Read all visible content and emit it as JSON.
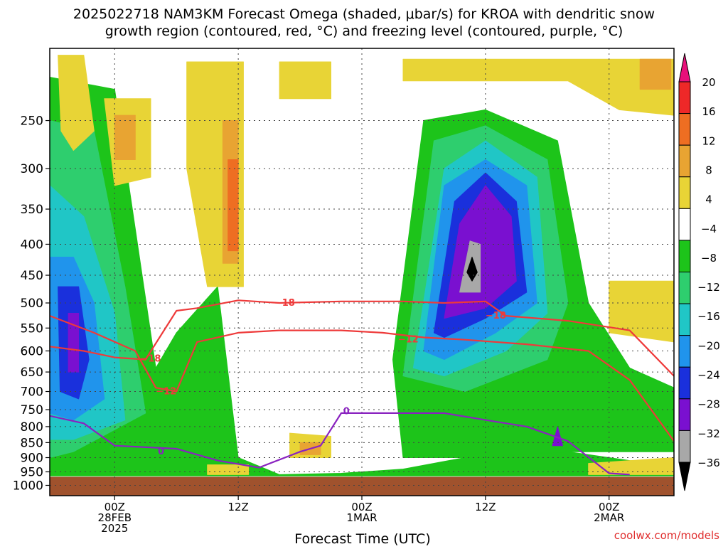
{
  "chart_data": {
    "type": "heatmap",
    "title_line1": "2025022718 NAM3KM Forecast Omega (shaded, μbar/s) for KROA with dendritic snow",
    "title_line2": "growth region (contoured, red, °C) and freezing level (contoured, purple, °C)",
    "xlabel": "Forecast Time (UTC)",
    "credit": "coolwx.com/models",
    "x_ticks": [
      {
        "label": "00Z",
        "label2": "28FEB",
        "label3": "2025",
        "hour": 6
      },
      {
        "label": "12Z",
        "label2": "",
        "label3": "",
        "hour": 18
      },
      {
        "label": "00Z",
        "label2": "1MAR",
        "label3": "",
        "hour": 30
      },
      {
        "label": "12Z",
        "label2": "",
        "label3": "",
        "hour": 42
      },
      {
        "label": "00Z",
        "label2": "2MAR",
        "label3": "",
        "hour": 54
      }
    ],
    "x_range_hours": [
      -0.3,
      60.3
    ],
    "y_ticks": [
      250,
      300,
      350,
      400,
      450,
      500,
      550,
      600,
      650,
      700,
      750,
      800,
      850,
      900,
      950,
      1000
    ],
    "y_axis": "pressure (hPa), log scale",
    "y_range": [
      190,
      1040
    ],
    "ground_level_hPa": 968,
    "colorbar": {
      "labels": [
        "20",
        "16",
        "12",
        "8",
        "4",
        "−4",
        "−8",
        "−12",
        "−16",
        "−20",
        "−24",
        "−28",
        "−32",
        "−36"
      ],
      "colors": [
        "#e8107a",
        "#ee2828",
        "#ee6e22",
        "#e8a432",
        "#e8d436",
        "#ffffff",
        "#1dc41a",
        "#2ece6e",
        "#20c6c6",
        "#2094ec",
        "#1a30dc",
        "#7a10d0",
        "#a8a8a8",
        "#000000"
      ]
    },
    "shading_regions": [
      {
        "level": "−4",
        "color": "#1dc41a",
        "points": [
          [
            -0.3,
            212
          ],
          [
            6,
            222
          ],
          [
            10,
            640
          ],
          [
            12,
            560
          ],
          [
            16,
            470
          ],
          [
            18,
            900
          ],
          [
            22,
            960
          ],
          [
            28,
            955
          ],
          [
            34,
            940
          ],
          [
            40,
            900
          ],
          [
            50,
            880
          ],
          [
            56,
            910
          ],
          [
            60.3,
            940
          ],
          [
            60.3,
            965
          ],
          [
            -0.3,
            965
          ]
        ]
      },
      {
        "level": "−8",
        "color": "#2ece6e",
        "points": [
          [
            -0.3,
            250
          ],
          [
            4,
            260
          ],
          [
            7,
            470
          ],
          [
            9,
            760
          ],
          [
            2,
            880
          ],
          [
            -0.3,
            900
          ]
        ]
      },
      {
        "level": "−12",
        "color": "#20c6c6",
        "points": [
          [
            -0.3,
            320
          ],
          [
            3,
            360
          ],
          [
            6,
            520
          ],
          [
            7,
            780
          ],
          [
            2,
            840
          ],
          [
            -0.3,
            840
          ]
        ]
      },
      {
        "level": "−16",
        "color": "#2094ec",
        "points": [
          [
            -0.3,
            420
          ],
          [
            2,
            420
          ],
          [
            4,
            500
          ],
          [
            5,
            720
          ],
          [
            2,
            780
          ],
          [
            -0.3,
            760
          ]
        ]
      },
      {
        "level": "−20",
        "color": "#1a30dc",
        "points": [
          [
            0.5,
            470
          ],
          [
            2.5,
            470
          ],
          [
            3.5,
            620
          ],
          [
            2.5,
            720
          ],
          [
            0.7,
            700
          ]
        ]
      },
      {
        "level": "−24",
        "color": "#7a10d0",
        "points": [
          [
            1.5,
            520
          ],
          [
            2.5,
            520
          ],
          [
            2.5,
            650
          ],
          [
            1.5,
            650
          ]
        ]
      },
      {
        "level": "−4",
        "color": "#1dc41a",
        "points": [
          [
            33,
            620
          ],
          [
            36,
            250
          ],
          [
            42,
            240
          ],
          [
            49,
            270
          ],
          [
            52,
            500
          ],
          [
            56,
            640
          ],
          [
            60.3,
            690
          ],
          [
            60.3,
            880
          ],
          [
            50,
            880
          ],
          [
            40,
            900
          ],
          [
            34,
            900
          ]
        ]
      },
      {
        "level": "−8",
        "color": "#2ece6e",
        "points": [
          [
            34,
            660
          ],
          [
            37,
            270
          ],
          [
            42,
            255
          ],
          [
            48,
            290
          ],
          [
            50,
            500
          ],
          [
            48,
            620
          ],
          [
            40,
            700
          ]
        ]
      },
      {
        "level": "−12",
        "color": "#20c6c6",
        "points": [
          [
            35,
            640
          ],
          [
            38,
            300
          ],
          [
            42,
            270
          ],
          [
            47,
            310
          ],
          [
            48,
            520
          ],
          [
            44,
            600
          ],
          [
            38,
            660
          ]
        ]
      },
      {
        "level": "−16",
        "color": "#2094ec",
        "points": [
          [
            36,
            600
          ],
          [
            38,
            320
          ],
          [
            42,
            290
          ],
          [
            46,
            320
          ],
          [
            47,
            500
          ],
          [
            43,
            560
          ],
          [
            38,
            620
          ]
        ]
      },
      {
        "level": "−20",
        "color": "#1a30dc",
        "points": [
          [
            37,
            560
          ],
          [
            39,
            340
          ],
          [
            42,
            305
          ],
          [
            45,
            340
          ],
          [
            46,
            480
          ],
          [
            42,
            530
          ],
          [
            38,
            570
          ]
        ]
      },
      {
        "level": "−24",
        "color": "#7a10d0",
        "points": [
          [
            38,
            530
          ],
          [
            39.5,
            370
          ],
          [
            42,
            320
          ],
          [
            44.5,
            360
          ],
          [
            45,
            460
          ],
          [
            42,
            510
          ]
        ]
      },
      {
        "level": "−32",
        "color": "#a8a8a8",
        "points": [
          [
            39.5,
            480
          ],
          [
            40.5,
            395
          ],
          [
            41.5,
            400
          ],
          [
            41.5,
            480
          ]
        ]
      },
      {
        "level": "−36",
        "color": "#000000",
        "points": [
          [
            40.2,
            445
          ],
          [
            40.7,
            420
          ],
          [
            41.2,
            445
          ],
          [
            40.7,
            460
          ]
        ]
      },
      {
        "level": "−24",
        "color": "#7a10d0",
        "points": [
          [
            48.5,
            860
          ],
          [
            49,
            800
          ],
          [
            49.5,
            860
          ]
        ]
      },
      {
        "level": "4",
        "color": "#e8d436",
        "points": [
          [
            0.5,
            195
          ],
          [
            3,
            195
          ],
          [
            4,
            260
          ],
          [
            2,
            280
          ],
          [
            0.8,
            260
          ]
        ]
      },
      {
        "level": "4",
        "color": "#e8d436",
        "points": [
          [
            5,
            230
          ],
          [
            9.5,
            230
          ],
          [
            9.5,
            310
          ],
          [
            6,
            320
          ]
        ]
      },
      {
        "level": "8",
        "color": "#e8a432",
        "points": [
          [
            6,
            245
          ],
          [
            8,
            245
          ],
          [
            8,
            290
          ],
          [
            6,
            290
          ]
        ]
      },
      {
        "level": "4",
        "color": "#e8d436",
        "points": [
          [
            13,
            200
          ],
          [
            18.5,
            200
          ],
          [
            18.5,
            470
          ],
          [
            15,
            470
          ],
          [
            13,
            300
          ]
        ]
      },
      {
        "level": "8",
        "color": "#e8a432",
        "points": [
          [
            16.5,
            250
          ],
          [
            18,
            250
          ],
          [
            18,
            430
          ],
          [
            16.5,
            430
          ]
        ]
      },
      {
        "level": "12",
        "color": "#ee6e22",
        "points": [
          [
            17,
            290
          ],
          [
            18,
            290
          ],
          [
            18,
            410
          ],
          [
            17,
            410
          ]
        ]
      },
      {
        "level": "4",
        "color": "#e8d436",
        "points": [
          [
            22,
            200
          ],
          [
            27,
            200
          ],
          [
            27,
            230
          ],
          [
            22,
            230
          ]
        ]
      },
      {
        "level": "4",
        "color": "#e8d436",
        "points": [
          [
            34,
            198
          ],
          [
            60.3,
            198
          ],
          [
            60.3,
            245
          ],
          [
            55,
            240
          ],
          [
            50,
            215
          ],
          [
            34,
            215
          ]
        ]
      },
      {
        "level": "8",
        "color": "#e8a432",
        "points": [
          [
            57,
            198
          ],
          [
            60,
            198
          ],
          [
            60,
            222
          ],
          [
            57,
            222
          ]
        ]
      },
      {
        "level": "4",
        "color": "#e8d436",
        "points": [
          [
            23,
            820
          ],
          [
            27,
            830
          ],
          [
            27,
            900
          ],
          [
            23,
            900
          ]
        ]
      },
      {
        "level": "8",
        "color": "#e8a432",
        "points": [
          [
            24,
            850
          ],
          [
            26,
            850
          ],
          [
            26,
            890
          ],
          [
            24,
            890
          ]
        ]
      },
      {
        "level": "4",
        "color": "#e8d436",
        "points": [
          [
            15,
            925
          ],
          [
            19,
            925
          ],
          [
            19,
            960
          ],
          [
            15,
            960
          ]
        ]
      },
      {
        "level": "4",
        "color": "#e8d436",
        "points": [
          [
            52,
            920
          ],
          [
            60.3,
            900
          ],
          [
            60.3,
            960
          ],
          [
            52,
            960
          ]
        ]
      },
      {
        "level": "4",
        "color": "#e8d436",
        "points": [
          [
            54,
            460
          ],
          [
            60.3,
            460
          ],
          [
            60.3,
            580
          ],
          [
            54,
            560
          ]
        ]
      }
    ],
    "contours": [
      {
        "color": "#ee3a3a",
        "label": "−18",
        "label_points": [
          [
            9.5,
            618
          ],
          [
            22.5,
            500
          ],
          [
            43,
            525
          ]
        ],
        "points": [
          [
            -0.3,
            590
          ],
          [
            3,
            600
          ],
          [
            6,
            615
          ],
          [
            9,
            620
          ],
          [
            12,
            515
          ],
          [
            14,
            510
          ],
          [
            18,
            495
          ],
          [
            22,
            500
          ],
          [
            28,
            497
          ],
          [
            34,
            497
          ],
          [
            38,
            500
          ],
          [
            42,
            497
          ],
          [
            44,
            525
          ],
          [
            50,
            535
          ],
          [
            56,
            555
          ],
          [
            60.3,
            660
          ]
        ]
      },
      {
        "color": "#ee3a3a",
        "label": "−12",
        "label_points": [
          [
            11,
            700
          ],
          [
            34.5,
            575
          ]
        ],
        "points": [
          [
            -0.3,
            525
          ],
          [
            4,
            560
          ],
          [
            8,
            600
          ],
          [
            10,
            690
          ],
          [
            12,
            700
          ],
          [
            14,
            580
          ],
          [
            18,
            560
          ],
          [
            22,
            555
          ],
          [
            28,
            555
          ],
          [
            32,
            560
          ],
          [
            36,
            570
          ],
          [
            40,
            575
          ],
          [
            46,
            585
          ],
          [
            52,
            600
          ],
          [
            56,
            670
          ],
          [
            60.3,
            845
          ]
        ]
      },
      {
        "color": "#8a22c0",
        "label": "0",
        "label_points": [
          [
            10.5,
            880
          ],
          [
            28.5,
            755
          ]
        ],
        "points": [
          [
            -0.3,
            768
          ],
          [
            3,
            790
          ],
          [
            6,
            860
          ],
          [
            12,
            870
          ],
          [
            16,
            910
          ],
          [
            20,
            935
          ],
          [
            24,
            880
          ],
          [
            26,
            860
          ],
          [
            28,
            760
          ],
          [
            32,
            760
          ],
          [
            38,
            760
          ],
          [
            42,
            780
          ],
          [
            46,
            800
          ],
          [
            50,
            845
          ],
          [
            54,
            955
          ],
          [
            56,
            960
          ]
        ]
      }
    ]
  }
}
